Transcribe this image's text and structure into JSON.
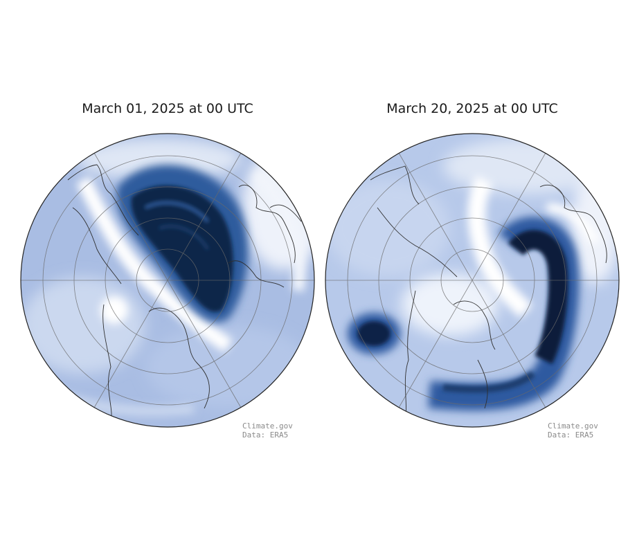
{
  "panels": [
    {
      "title": "March 01, 2025 at 00 UTC",
      "credit_line1": "Climate.gov",
      "credit_line2": "Data: ERA5"
    },
    {
      "title": "March 20, 2025 at 00 UTC",
      "credit_line1": "Climate.gov",
      "credit_line2": "Data: ERA5"
    }
  ],
  "colors": {
    "dark_blue": "#0b1e3a",
    "mid_blue": "#2d5aa0",
    "light_blue": "#9db3dd",
    "pale": "#dfe6f4",
    "white": "#ffffff",
    "coast": "#333333",
    "grid": "#666666"
  },
  "projection": "north-polar-stereographic"
}
